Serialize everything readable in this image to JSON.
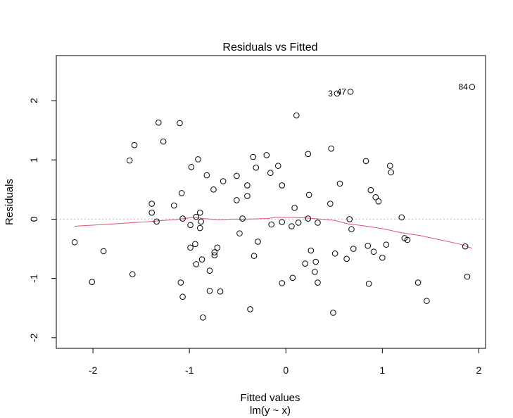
{
  "chart_data": {
    "type": "scatter",
    "title": "Residuals vs Fitted",
    "xlabel": "Fitted values",
    "subtitle": "lm(y ~ x)",
    "ylabel": "Residuals",
    "xlim": [
      -2.38,
      2.07
    ],
    "ylim": [
      -2.18,
      2.76
    ],
    "xticks": [
      -2,
      -1,
      0,
      1,
      2
    ],
    "xtick_labels": [
      "-2",
      "-1",
      "0",
      "1",
      "2"
    ],
    "yticks": [
      -2,
      -1,
      0,
      1,
      2
    ],
    "ytick_labels": [
      "-2",
      "-1",
      "0",
      "1",
      "2"
    ],
    "reference_line": {
      "y": 0,
      "style": "dotted",
      "color": "#bbbbbb"
    },
    "point_color": "#000000",
    "smooth_color": "#df536b",
    "points": [
      [
        -2.19,
        -0.39
      ],
      [
        -2.01,
        -1.06
      ],
      [
        -1.89,
        -0.54
      ],
      [
        -1.62,
        0.99
      ],
      [
        -1.59,
        -0.93
      ],
      [
        -1.57,
        1.25
      ],
      [
        -1.39,
        0.26
      ],
      [
        -1.39,
        0.11
      ],
      [
        -1.34,
        -0.04
      ],
      [
        -1.32,
        1.63
      ],
      [
        -1.27,
        1.31
      ],
      [
        -1.16,
        0.23
      ],
      [
        -1.1,
        1.62
      ],
      [
        -1.09,
        -1.07
      ],
      [
        -1.08,
        0.44
      ],
      [
        -1.07,
        -1.31
      ],
      [
        -1.07,
        0.01
      ],
      [
        -0.99,
        -0.48
      ],
      [
        -0.99,
        -0.1
      ],
      [
        -0.98,
        0.88
      ],
      [
        -0.94,
        -0.42
      ],
      [
        -0.93,
        -0.76
      ],
      [
        -0.93,
        0.04
      ],
      [
        -0.91,
        1.01
      ],
      [
        -0.89,
        0.11
      ],
      [
        -0.89,
        -0.15
      ],
      [
        -0.88,
        -0.04
      ],
      [
        -0.87,
        -0.68
      ],
      [
        -0.86,
        -1.66
      ],
      [
        -0.82,
        0.74
      ],
      [
        -0.79,
        -0.87
      ],
      [
        -0.79,
        -1.21
      ],
      [
        -0.75,
        0.5
      ],
      [
        -0.74,
        -0.56
      ],
      [
        -0.74,
        -0.61
      ],
      [
        -0.71,
        -0.48
      ],
      [
        -0.68,
        -1.22
      ],
      [
        -0.65,
        0.64
      ],
      [
        -0.51,
        0.32
      ],
      [
        -0.51,
        0.73
      ],
      [
        -0.48,
        -0.24
      ],
      [
        -0.45,
        0.01
      ],
      [
        -0.4,
        0.39
      ],
      [
        -0.4,
        0.57
      ],
      [
        -0.37,
        -1.52
      ],
      [
        -0.34,
        1.05
      ],
      [
        -0.33,
        -0.62
      ],
      [
        -0.31,
        0.87
      ],
      [
        -0.29,
        -0.38
      ],
      [
        -0.2,
        1.08
      ],
      [
        -0.16,
        0.78
      ],
      [
        -0.15,
        -0.09
      ],
      [
        -0.08,
        0.9
      ],
      [
        -0.04,
        0.57
      ],
      [
        -0.04,
        -0.05
      ],
      [
        -0.04,
        -1.08
      ],
      [
        0.06,
        -0.12
      ],
      [
        0.07,
        -0.99
      ],
      [
        0.09,
        0.19
      ],
      [
        0.11,
        1.75
      ],
      [
        0.13,
        -0.06
      ],
      [
        0.2,
        -0.75
      ],
      [
        0.23,
        0.01
      ],
      [
        0.23,
        1.1
      ],
      [
        0.24,
        0.41
      ],
      [
        0.26,
        -0.53
      ],
      [
        0.3,
        -0.89
      ],
      [
        0.31,
        -0.72
      ],
      [
        0.33,
        -1.07
      ],
      [
        0.33,
        -0.06
      ],
      [
        0.46,
        0.26
      ],
      [
        0.47,
        1.19
      ],
      [
        0.49,
        -1.58
      ],
      [
        0.51,
        -0.58
      ],
      [
        0.53,
        2.12
      ],
      [
        0.56,
        0.6
      ],
      [
        0.63,
        -0.67
      ],
      [
        0.66,
        0.0
      ],
      [
        0.67,
        2.15
      ],
      [
        0.68,
        -0.17
      ],
      [
        0.7,
        -0.5
      ],
      [
        0.83,
        0.98
      ],
      [
        0.85,
        -0.45
      ],
      [
        0.86,
        -1.09
      ],
      [
        0.88,
        0.49
      ],
      [
        0.91,
        -0.55
      ],
      [
        0.93,
        0.37
      ],
      [
        0.96,
        0.3
      ],
      [
        1.0,
        -0.65
      ],
      [
        1.04,
        -0.43
      ],
      [
        1.08,
        0.9
      ],
      [
        1.09,
        0.79
      ],
      [
        1.2,
        0.03
      ],
      [
        1.23,
        -0.32
      ],
      [
        1.26,
        -0.35
      ],
      [
        1.37,
        -1.07
      ],
      [
        1.46,
        -1.38
      ],
      [
        1.86,
        -0.46
      ],
      [
        1.88,
        -0.97
      ],
      [
        1.93,
        2.23
      ]
    ],
    "point_labels": [
      {
        "label": "3",
        "x": 0.53,
        "y": 2.12
      },
      {
        "label": "47",
        "x": 0.67,
        "y": 2.15
      },
      {
        "label": "84",
        "x": 1.93,
        "y": 2.23
      }
    ],
    "smooth_line": [
      [
        -2.19,
        -0.12
      ],
      [
        -1.8,
        -0.08
      ],
      [
        -1.4,
        -0.04
      ],
      [
        -1.1,
        0.0
      ],
      [
        -0.96,
        0.03
      ],
      [
        -0.85,
        0.01
      ],
      [
        -0.7,
        -0.01
      ],
      [
        -0.55,
        0.0
      ],
      [
        -0.4,
        0.0
      ],
      [
        -0.2,
        0.01
      ],
      [
        -0.1,
        0.03
      ],
      [
        0.05,
        0.03
      ],
      [
        0.2,
        0.02
      ],
      [
        0.3,
        0.01
      ],
      [
        0.5,
        -0.02
      ],
      [
        0.65,
        -0.08
      ],
      [
        0.8,
        -0.11
      ],
      [
        1.0,
        -0.16
      ],
      [
        1.2,
        -0.23
      ],
      [
        1.4,
        -0.28
      ],
      [
        1.6,
        -0.35
      ],
      [
        1.8,
        -0.42
      ],
      [
        1.93,
        -0.49
      ]
    ]
  }
}
